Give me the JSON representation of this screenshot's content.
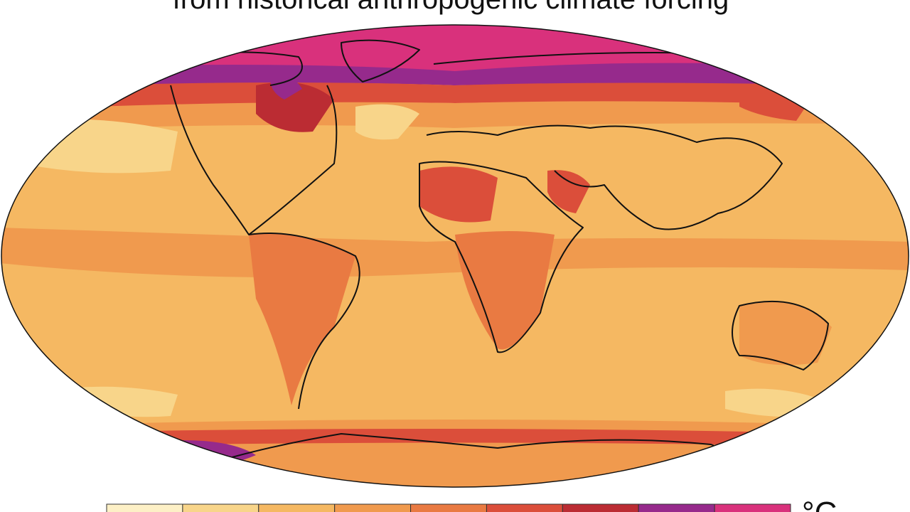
{
  "title": "from historical anthropogenic climate forcing",
  "legend": {
    "unit": "°C",
    "colors": [
      "#fdf0c6",
      "#f8d58a",
      "#f5b862",
      "#f09a4e",
      "#e97a42",
      "#db4e3a",
      "#bb2c33",
      "#962a8c",
      "#d9317c"
    ]
  }
}
